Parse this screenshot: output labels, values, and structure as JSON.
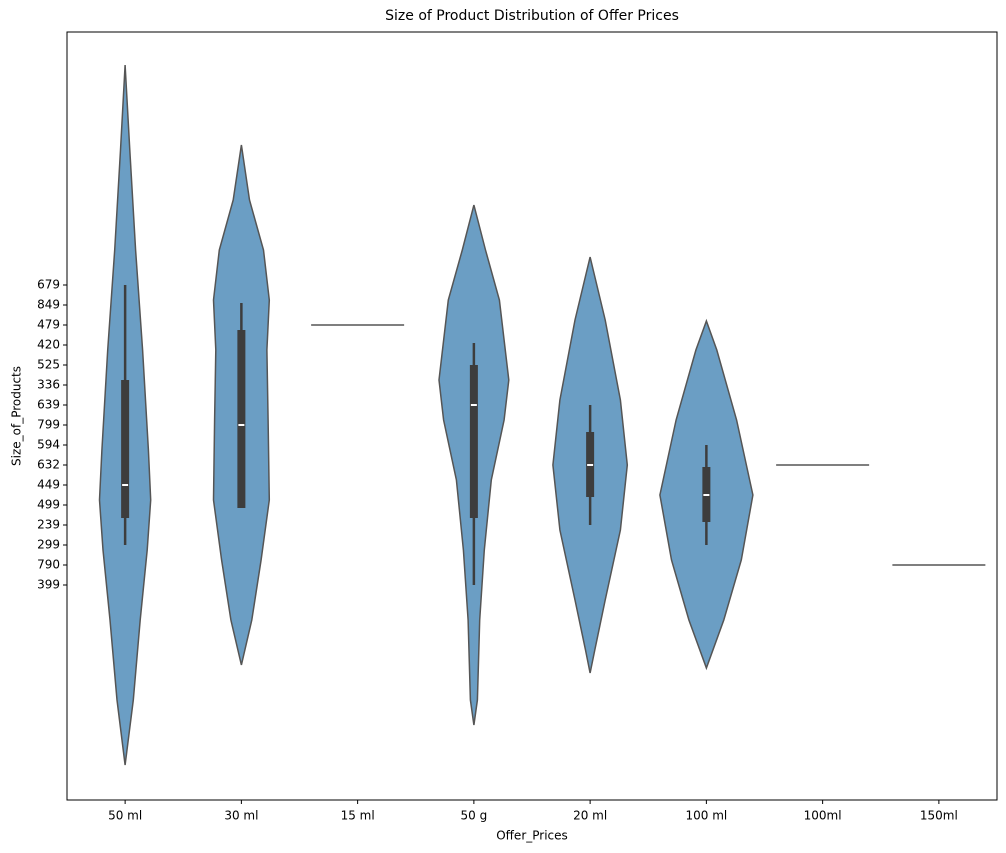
{
  "chart_data": {
    "type": "violin",
    "title": "Size of Product Distribution of Offer Prices",
    "x_label": "Offer_Prices",
    "y_label": "Size_of_Products",
    "categories": [
      "50 ml",
      "30 ml",
      "15 ml",
      "50 g",
      "20 ml",
      "100 ml",
      "100ml",
      "150ml"
    ],
    "color": "#6b9ec4",
    "box_color": "#3d3d3d",
    "ylim": [
      -10.75,
      27.65
    ],
    "yticks": [
      {
        "value": 0,
        "label": "399"
      },
      {
        "value": 1,
        "label": "790"
      },
      {
        "value": 2,
        "label": "299"
      },
      {
        "value": 3,
        "label": "239"
      },
      {
        "value": 4,
        "label": "499"
      },
      {
        "value": 5,
        "label": "449"
      },
      {
        "value": 6,
        "label": "632"
      },
      {
        "value": 7,
        "label": "594"
      },
      {
        "value": 8,
        "label": "799"
      },
      {
        "value": 9,
        "label": "639"
      },
      {
        "value": 10,
        "label": "336"
      },
      {
        "value": 11,
        "label": "525"
      },
      {
        "value": 12,
        "label": "420"
      },
      {
        "value": 13,
        "label": "479"
      },
      {
        "value": 14,
        "label": "849"
      },
      {
        "value": 15,
        "label": "679"
      }
    ],
    "violins": [
      {
        "kde_y": [
          26,
          21.75,
          16.75,
          11.75,
          6.75,
          4.25,
          1.75,
          -1.75,
          -5.75,
          -9
        ],
        "kde_half_width": [
          0,
          0.04,
          0.09,
          0.15,
          0.2,
          0.22,
          0.19,
          0.13,
          0.07,
          0
        ],
        "whisker": [
          2,
          15
        ],
        "box": [
          3.35,
          10.25
        ],
        "median": 5
      },
      {
        "kde_y": [
          22,
          19.25,
          16.75,
          14.25,
          11.75,
          8.25,
          4.25,
          1.25,
          -1.75,
          -4
        ],
        "kde_half_width": [
          0,
          0.07,
          0.19,
          0.24,
          0.22,
          0.23,
          0.24,
          0.17,
          0.09,
          0
        ],
        "whisker": [
          3.85,
          14.1
        ],
        "box": [
          3.85,
          12.75
        ],
        "median": 8
      },
      {
        "value": 13
      },
      {
        "kde_y": [
          19,
          16.75,
          14.25,
          10.25,
          8.25,
          5.25,
          1.75,
          -1.75,
          -5.75,
          -7
        ],
        "kde_half_width": [
          0,
          0.1,
          0.22,
          0.3,
          0.26,
          0.15,
          0.09,
          0.05,
          0.03,
          0
        ],
        "whisker": [
          0,
          12.1
        ],
        "box": [
          3.35,
          11
        ],
        "median": 9
      },
      {
        "kde_y": [
          16.4,
          13.25,
          9.25,
          6,
          2.75,
          -0.75,
          -3.25,
          -4.4
        ],
        "kde_half_width": [
          0,
          0.13,
          0.26,
          0.32,
          0.26,
          0.13,
          0.04,
          0
        ],
        "whisker": [
          3,
          9
        ],
        "box": [
          4.4,
          7.65
        ],
        "median": 6
      },
      {
        "kde_y": [
          13.2,
          11.75,
          8.25,
          4.5,
          1.25,
          -1.75,
          -4.15
        ],
        "kde_half_width": [
          0,
          0.09,
          0.26,
          0.4,
          0.3,
          0.15,
          0
        ],
        "whisker": [
          2,
          7
        ],
        "box": [
          3.15,
          5.9
        ],
        "median": 4.5
      },
      {
        "value": 6
      },
      {
        "value": 1
      }
    ]
  }
}
